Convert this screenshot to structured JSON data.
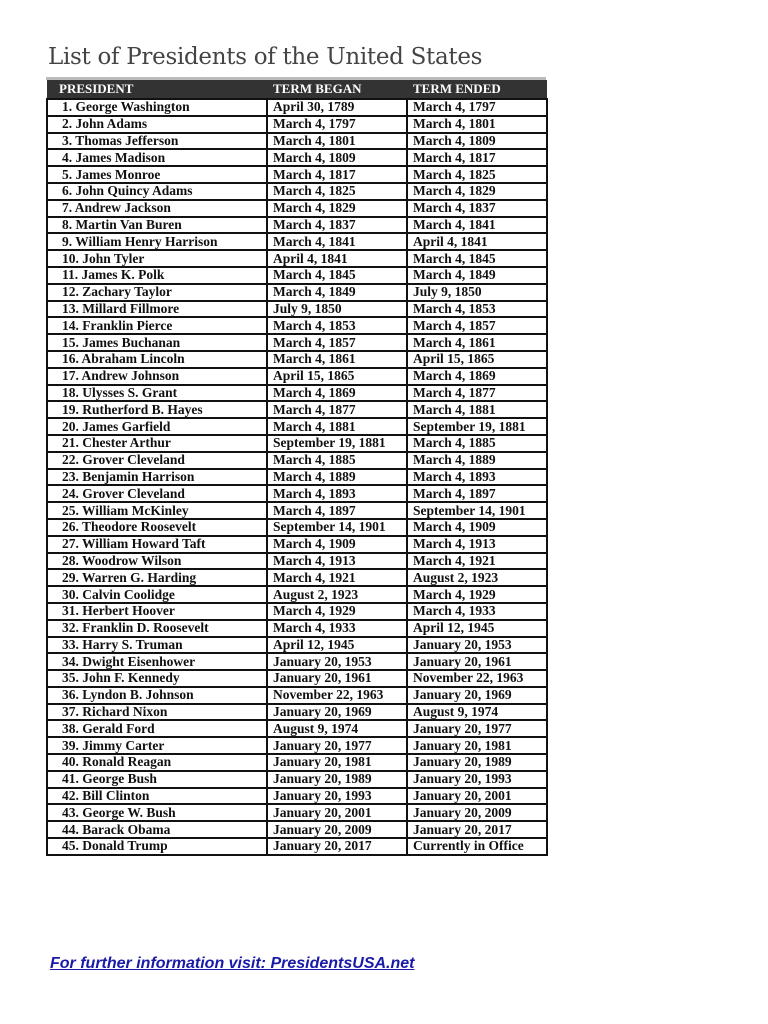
{
  "title": "List of Presidents of the United States",
  "table": {
    "headers": [
      "PRESIDENT",
      "TERM BEGAN",
      "TERM ENDED"
    ],
    "rows": [
      [
        "1. George Washington",
        "April 30, 1789",
        "March 4, 1797"
      ],
      [
        "2. John Adams",
        "March 4, 1797",
        "March 4, 1801"
      ],
      [
        "3. Thomas Jefferson",
        "March 4, 1801",
        "March 4, 1809"
      ],
      [
        "4. James Madison",
        "March 4, 1809",
        "March 4, 1817"
      ],
      [
        "5. James Monroe",
        "March 4, 1817",
        "March 4, 1825"
      ],
      [
        "6. John Quincy Adams",
        "March 4, 1825",
        "March 4, 1829"
      ],
      [
        "7. Andrew Jackson",
        "March 4, 1829",
        "March 4, 1837"
      ],
      [
        "8. Martin Van Buren",
        "March 4, 1837",
        "March 4, 1841"
      ],
      [
        "9. William Henry Harrison",
        "March 4, 1841",
        "April 4, 1841"
      ],
      [
        "10. John Tyler",
        "April 4, 1841",
        "March 4, 1845"
      ],
      [
        "11. James K. Polk",
        "March 4, 1845",
        "March 4, 1849"
      ],
      [
        "12. Zachary Taylor",
        "March 4, 1849",
        "July 9, 1850"
      ],
      [
        "13. Millard Fillmore",
        "July 9, 1850",
        "March 4, 1853"
      ],
      [
        "14. Franklin Pierce",
        "March 4, 1853",
        "March 4, 1857"
      ],
      [
        "15. James Buchanan",
        "March 4, 1857",
        "March 4, 1861"
      ],
      [
        "16. Abraham Lincoln",
        "March 4, 1861",
        "April 15, 1865"
      ],
      [
        "17. Andrew Johnson",
        "April 15, 1865",
        "March 4, 1869"
      ],
      [
        "18. Ulysses S. Grant",
        "March 4, 1869",
        "March 4, 1877"
      ],
      [
        "19. Rutherford B. Hayes",
        "March 4, 1877",
        "March 4, 1881"
      ],
      [
        "20. James Garfield",
        "March 4, 1881",
        "September 19, 1881"
      ],
      [
        "21. Chester Arthur",
        "September 19, 1881",
        "March 4, 1885"
      ],
      [
        "22. Grover Cleveland",
        "March 4, 1885",
        "March 4, 1889"
      ],
      [
        "23. Benjamin Harrison",
        "March 4, 1889",
        "March 4, 1893"
      ],
      [
        "24. Grover Cleveland",
        "March 4, 1893",
        "March 4, 1897"
      ],
      [
        "25. William McKinley",
        "March 4, 1897",
        "September 14, 1901"
      ],
      [
        "26. Theodore Roosevelt",
        "September 14, 1901",
        "March 4, 1909"
      ],
      [
        "27. William Howard Taft",
        "March 4, 1909",
        "March 4, 1913"
      ],
      [
        "28. Woodrow Wilson",
        "March 4, 1913",
        "March 4, 1921"
      ],
      [
        "29. Warren G. Harding",
        "March 4, 1921",
        "August 2, 1923"
      ],
      [
        "30. Calvin Coolidge",
        "August 2, 1923",
        "March 4, 1929"
      ],
      [
        "31. Herbert Hoover",
        "March 4, 1929",
        "March 4, 1933"
      ],
      [
        "32. Franklin D. Roosevelt",
        "March 4, 1933",
        "April 12, 1945"
      ],
      [
        "33. Harry S. Truman",
        "April 12, 1945",
        "January 20, 1953"
      ],
      [
        "34. Dwight Eisenhower",
        "January 20, 1953",
        "January 20, 1961"
      ],
      [
        "35. John F. Kennedy",
        "January 20, 1961",
        "November 22, 1963"
      ],
      [
        "36. Lyndon B. Johnson",
        "November 22, 1963",
        "January 20, 1969"
      ],
      [
        "37. Richard Nixon",
        "January 20, 1969",
        "August 9, 1974"
      ],
      [
        "38. Gerald Ford",
        "August 9, 1974",
        "January 20, 1977"
      ],
      [
        "39. Jimmy Carter",
        "January 20, 1977",
        "January 20, 1981"
      ],
      [
        "40. Ronald Reagan",
        "January 20, 1981",
        "January 20, 1989"
      ],
      [
        "41. George Bush",
        "January 20, 1989",
        "January 20, 1993"
      ],
      [
        "42. Bill Clinton",
        "January 20, 1993",
        "January 20, 2001"
      ],
      [
        "43. George W. Bush",
        "January 20, 2001",
        "January 20, 2009"
      ],
      [
        "44. Barack Obama",
        "January 20, 2009",
        "January 20, 2017"
      ],
      [
        "45. Donald Trump",
        "January 20, 2017",
        "Currently in Office"
      ]
    ]
  },
  "footer": {
    "link_text": "For further information visit: PresidentsUSA.net"
  },
  "colors": {
    "header_bg": "#333333",
    "link": "#1a1aa8"
  }
}
